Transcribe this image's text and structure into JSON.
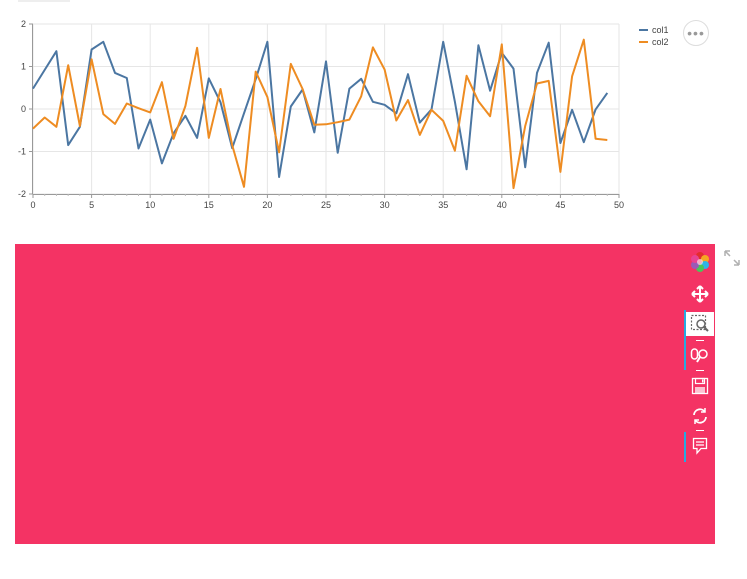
{
  "chart_data": {
    "type": "line",
    "x": [
      0,
      1,
      2,
      3,
      4,
      5,
      6,
      7,
      8,
      9,
      10,
      11,
      12,
      13,
      14,
      15,
      16,
      17,
      18,
      19,
      20,
      21,
      22,
      23,
      24,
      25,
      26,
      27,
      28,
      29,
      30,
      31,
      32,
      33,
      34,
      35,
      36,
      37,
      38,
      39,
      40,
      41,
      42,
      43,
      44,
      45,
      46,
      47,
      48,
      49
    ],
    "series": [
      {
        "name": "col1",
        "color": "#4b76a2",
        "values": [
          0.48,
          0.92,
          1.36,
          -0.85,
          -0.42,
          1.4,
          1.58,
          0.85,
          0.73,
          -0.93,
          -0.25,
          -1.28,
          -0.57,
          -0.16,
          -0.68,
          0.72,
          0.16,
          -0.92,
          -0.1,
          0.7,
          1.58,
          -1.6,
          0.06,
          0.46,
          -0.55,
          1.12,
          -1.03,
          0.48,
          0.71,
          0.17,
          0.1,
          -0.1,
          0.82,
          -0.32,
          -0.01,
          1.58,
          0.17,
          -1.42,
          1.5,
          0.43,
          1.32,
          0.95,
          -1.37,
          0.85,
          1.56,
          -0.8,
          -0.02,
          -0.78,
          -0.01,
          0.38
        ]
      },
      {
        "name": "col2",
        "color": "#ee8c22",
        "values": [
          -0.46,
          -0.2,
          -0.42,
          1.03,
          -0.4,
          1.17,
          -0.12,
          -0.35,
          0.13,
          0.02,
          -0.08,
          0.63,
          -0.7,
          0.07,
          1.44,
          -0.68,
          0.47,
          -0.85,
          -1.83,
          0.88,
          0.28,
          -1.02,
          1.06,
          0.47,
          -0.37,
          -0.36,
          -0.31,
          -0.25,
          0.3,
          1.45,
          0.93,
          -0.27,
          0.21,
          -0.61,
          -0.02,
          -0.28,
          -0.98,
          0.78,
          0.18,
          -0.17,
          1.52,
          -1.86,
          -0.4,
          0.6,
          0.66,
          -1.48,
          0.77,
          1.63,
          -0.7,
          -0.73
        ]
      }
    ],
    "xlim": [
      0,
      50
    ],
    "ylim": [
      -2,
      2
    ],
    "xticks": [
      0,
      5,
      10,
      15,
      20,
      25,
      30,
      35,
      40,
      45,
      50
    ],
    "yticks": [
      -2,
      -1,
      0,
      1,
      2
    ],
    "grid": true,
    "legend": "top-right",
    "title": "",
    "xlabel": "",
    "ylabel": ""
  },
  "panel": {
    "color": "#f43364"
  },
  "toolbar": {
    "tools": [
      {
        "name": "bokeh-logo-icon",
        "active": false
      },
      {
        "name": "pan-icon",
        "active": false
      },
      {
        "name": "box-zoom-icon",
        "active": true
      },
      {
        "name": "wheel-zoom-icon",
        "active": false
      },
      {
        "name": "save-icon",
        "active": false
      },
      {
        "name": "reset-icon",
        "active": false
      },
      {
        "name": "hover-icon",
        "active": false
      }
    ]
  },
  "more_button": {
    "label": "•••"
  }
}
